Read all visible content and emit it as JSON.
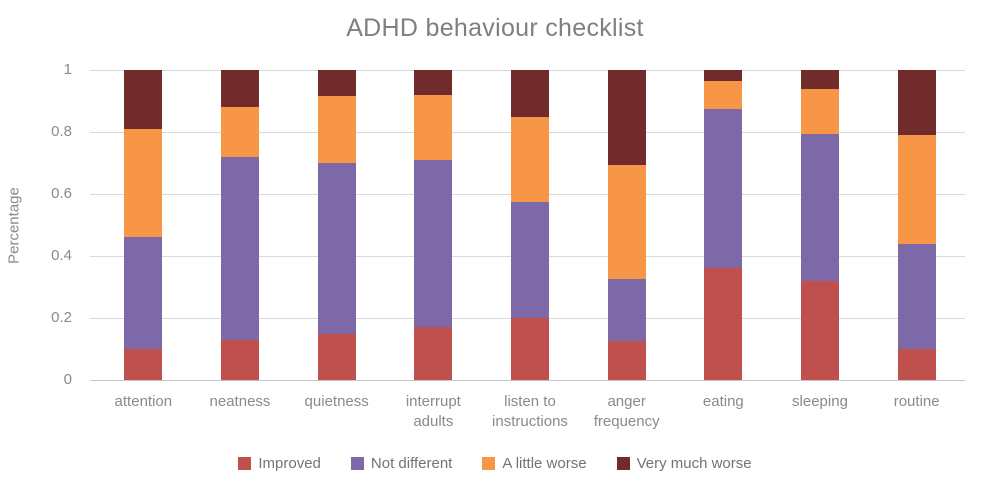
{
  "title": "ADHD behaviour checklist",
  "y_axis": {
    "label": "Percentage",
    "ticks": [
      "1",
      "0.8",
      "0.6",
      "0.4",
      "0.2",
      "0"
    ],
    "tick_values": [
      1,
      0.8,
      0.6,
      0.4,
      0.2,
      0
    ]
  },
  "chart_data": {
    "type": "bar",
    "stacked": true,
    "title": "ADHD behaviour checklist",
    "xlabel": "",
    "ylabel": "Percentage",
    "ylim": [
      0,
      1
    ],
    "grid": true,
    "legend_position": "bottom",
    "categories": [
      "attention",
      "neatness",
      "quietness",
      "interrupt adults",
      "listen to instructions",
      "anger frequency",
      "eating",
      "sleeping",
      "routine"
    ],
    "series": [
      {
        "name": "Improved",
        "color": "#C0504D",
        "values": [
          0.1,
          0.13,
          0.15,
          0.17,
          0.2,
          0.125,
          0.36,
          0.32,
          0.1
        ]
      },
      {
        "name": "Not different",
        "color": "#7D68A8",
        "values": [
          0.36,
          0.59,
          0.55,
          0.54,
          0.375,
          0.2,
          0.515,
          0.475,
          0.34
        ]
      },
      {
        "name": "A little worse",
        "color": "#F79646",
        "values": [
          0.35,
          0.16,
          0.215,
          0.21,
          0.275,
          0.37,
          0.09,
          0.145,
          0.35
        ]
      },
      {
        "name": "Very much worse",
        "color": "#722B2B",
        "values": [
          0.19,
          0.12,
          0.085,
          0.08,
          0.15,
          0.305,
          0.035,
          0.06,
          0.21
        ]
      }
    ]
  }
}
